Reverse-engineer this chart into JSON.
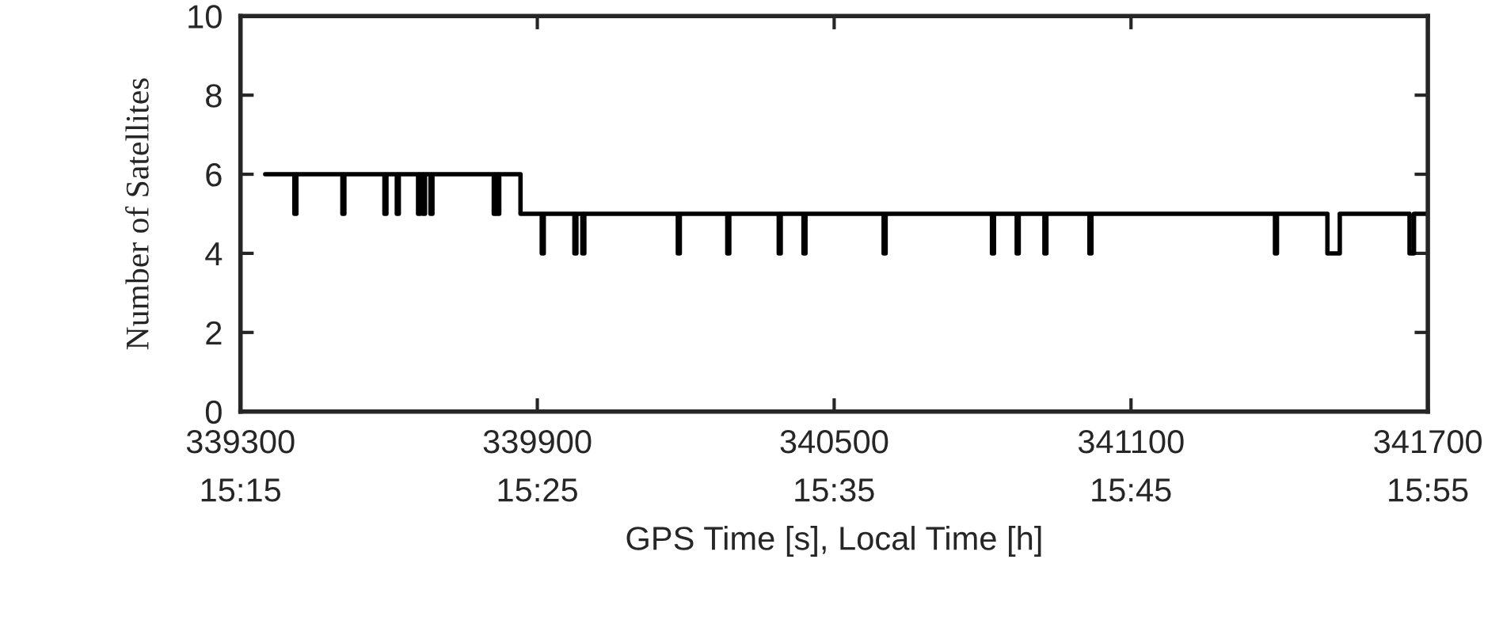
{
  "chart_data": {
    "type": "step",
    "xlabel": "GPS Time [s], Local Time [h]",
    "ylabel": "Number of Satellites",
    "x": [
      339350,
      339409,
      339413,
      339506,
      339510,
      339591,
      339595,
      339616,
      339620,
      339659,
      339663,
      339669,
      339673,
      339684,
      339688,
      339812,
      339816,
      339819,
      339823,
      339866,
      339909,
      339913,
      339975,
      339979,
      339991,
      339995,
      340184,
      340188,
      340284,
      340288,
      340388,
      340392,
      340438,
      340442,
      340600,
      340604,
      340819,
      340823,
      340869,
      340873,
      340925,
      340929,
      341016,
      341020,
      341391,
      341395,
      341497,
      341522,
      341663,
      341672,
      341700
    ],
    "series": [
      {
        "color": "#000000",
        "values": [
          6,
          5,
          6,
          5,
          6,
          5,
          6,
          5,
          6,
          5,
          6,
          5,
          6,
          5,
          6,
          5,
          6,
          5,
          6,
          5,
          4,
          5,
          4,
          5,
          4,
          5,
          4,
          5,
          4,
          5,
          4,
          5,
          4,
          5,
          4,
          5,
          4,
          5,
          4,
          5,
          4,
          5,
          4,
          5,
          4,
          5,
          4,
          5,
          4,
          5,
          5
        ]
      }
    ],
    "xlim": [
      339300,
      341700
    ],
    "xticks": [
      339300,
      339900,
      340500,
      341100,
      341700
    ],
    "x2lim": [
      15.25,
      15.9167
    ],
    "x2ticks": [
      {
        "value": 15.25,
        "label": "15:15"
      },
      {
        "value": 15.4167,
        "label": "15:25"
      },
      {
        "value": 15.5833,
        "label": "15:35"
      },
      {
        "value": 15.75,
        "label": "15:45"
      },
      {
        "value": 15.9167,
        "label": "15:55"
      }
    ],
    "ylim": [
      0,
      10
    ],
    "yticks": [
      0,
      2,
      4,
      6,
      8,
      10
    ],
    "grid": false,
    "legend": false
  }
}
